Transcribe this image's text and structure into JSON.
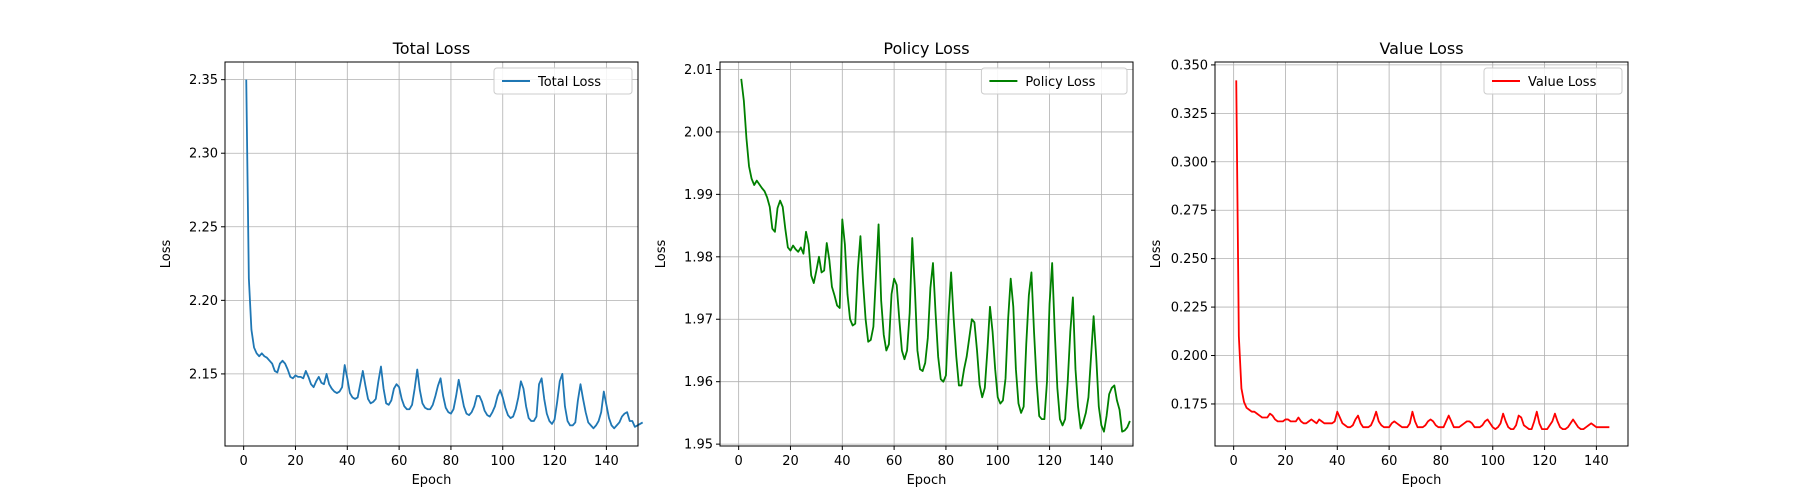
{
  "figure": {
    "background": "#ffffff"
  },
  "chart_data": [
    {
      "type": "line",
      "title": "Total Loss",
      "xlabel": "Epoch",
      "ylabel": "Loss",
      "xlim": [
        -7.2,
        152.2
      ],
      "ylim": [
        2.101,
        2.362
      ],
      "xticks": [
        0,
        20,
        40,
        60,
        80,
        100,
        120,
        140
      ],
      "yticks": [
        2.15,
        2.2,
        2.25,
        2.3,
        2.35
      ],
      "ytick_labels": [
        "2.15",
        "2.20",
        "2.25",
        "2.30",
        "2.35"
      ],
      "grid": true,
      "legend_position": "top-right",
      "series": [
        {
          "name": "Total Loss",
          "color": "#1f77b4",
          "x_start": 1,
          "values": [
            2.35,
            2.215,
            2.18,
            2.168,
            2.164,
            2.162,
            2.164,
            2.162,
            2.161,
            2.159,
            2.157,
            2.152,
            2.151,
            2.157,
            2.159,
            2.157,
            2.153,
            2.148,
            2.147,
            2.149,
            2.148,
            2.148,
            2.147,
            2.152,
            2.148,
            2.143,
            2.141,
            2.145,
            2.148,
            2.144,
            2.143,
            2.15,
            2.143,
            2.14,
            2.138,
            2.137,
            2.138,
            2.141,
            2.156,
            2.147,
            2.137,
            2.134,
            2.133,
            2.134,
            2.143,
            2.152,
            2.142,
            2.133,
            2.13,
            2.131,
            2.133,
            2.145,
            2.155,
            2.14,
            2.13,
            2.129,
            2.132,
            2.14,
            2.143,
            2.141,
            2.133,
            2.128,
            2.126,
            2.126,
            2.129,
            2.14,
            2.153,
            2.139,
            2.13,
            2.127,
            2.126,
            2.126,
            2.129,
            2.135,
            2.142,
            2.147,
            2.135,
            2.127,
            2.124,
            2.123,
            2.126,
            2.135,
            2.146,
            2.137,
            2.128,
            2.123,
            2.122,
            2.124,
            2.128,
            2.135,
            2.135,
            2.131,
            2.125,
            2.122,
            2.121,
            2.124,
            2.128,
            2.135,
            2.139,
            2.134,
            2.127,
            2.122,
            2.12,
            2.121,
            2.126,
            2.134,
            2.145,
            2.14,
            2.128,
            2.12,
            2.118,
            2.118,
            2.121,
            2.143,
            2.147,
            2.133,
            2.123,
            2.118,
            2.116,
            2.119,
            2.131,
            2.145,
            2.15,
            2.128,
            2.118,
            2.115,
            2.115,
            2.117,
            2.132,
            2.143,
            2.133,
            2.124,
            2.117,
            2.115,
            2.113,
            2.115,
            2.118,
            2.124,
            2.138,
            2.129,
            2.12,
            2.115,
            2.113,
            2.115,
            2.117,
            2.121,
            2.123,
            2.124,
            2.118,
            2.118,
            2.114,
            2.115,
            2.116,
            2.117
          ]
        }
      ]
    },
    {
      "type": "line",
      "title": "Policy Loss",
      "xlabel": "Epoch",
      "ylabel": "Loss",
      "xlim": [
        -7.2,
        152.2
      ],
      "ylim": [
        1.9497,
        2.0112
      ],
      "xticks": [
        0,
        20,
        40,
        60,
        80,
        100,
        120,
        140
      ],
      "yticks": [
        1.95,
        1.96,
        1.97,
        1.98,
        1.99,
        2.0,
        2.01
      ],
      "ytick_labels": [
        "1.95",
        "1.96",
        "1.97",
        "1.98",
        "1.99",
        "2.00",
        "2.01"
      ],
      "grid": true,
      "legend_position": "top-right",
      "series": [
        {
          "name": "Policy Loss",
          "color": "#008000",
          "x_start": 1,
          "values": [
            2.0085,
            2.005,
            1.999,
            1.9945,
            1.9925,
            1.9915,
            1.9922,
            1.9916,
            1.991,
            1.9905,
            1.9895,
            1.988,
            1.9845,
            1.984,
            1.9878,
            1.989,
            1.988,
            1.9845,
            1.9815,
            1.981,
            1.9818,
            1.9812,
            1.9808,
            1.9815,
            1.9805,
            1.984,
            1.982,
            1.977,
            1.9758,
            1.9778,
            1.98,
            1.9775,
            1.9778,
            1.9822,
            1.9795,
            1.9752,
            1.9738,
            1.9722,
            1.9718,
            1.986,
            1.982,
            1.974,
            1.97,
            1.969,
            1.9693,
            1.978,
            1.9833,
            1.976,
            1.97,
            1.9664,
            1.9667,
            1.9688,
            1.977,
            1.9852,
            1.973,
            1.9675,
            1.965,
            1.966,
            1.974,
            1.9765,
            1.9755,
            1.97,
            1.965,
            1.9636,
            1.965,
            1.971,
            1.983,
            1.975,
            1.965,
            1.962,
            1.9617,
            1.963,
            1.967,
            1.975,
            1.979,
            1.971,
            1.964,
            1.9604,
            1.96,
            1.961,
            1.9705,
            1.9775,
            1.97,
            1.964,
            1.9594,
            1.9594,
            1.962,
            1.964,
            1.967,
            1.97,
            1.9695,
            1.965,
            1.9595,
            1.9575,
            1.959,
            1.965,
            1.972,
            1.968,
            1.962,
            1.9575,
            1.9565,
            1.957,
            1.9605,
            1.97,
            1.9765,
            1.972,
            1.962,
            1.9565,
            1.955,
            1.956,
            1.966,
            1.9738,
            1.9775,
            1.968,
            1.96,
            1.9545,
            1.954,
            1.954,
            1.96,
            1.9725,
            1.979,
            1.968,
            1.959,
            1.954,
            1.953,
            1.954,
            1.96,
            1.968,
            1.9735,
            1.962,
            1.956,
            1.9525,
            1.9535,
            1.955,
            1.9575,
            1.964,
            1.9705,
            1.964,
            1.956,
            1.953,
            1.952,
            1.9545,
            1.958,
            1.959,
            1.9594,
            1.957,
            1.9555,
            1.952,
            1.9522,
            1.9527,
            1.9537
          ]
        }
      ]
    },
    {
      "type": "line",
      "title": "Value Loss",
      "xlabel": "Epoch",
      "ylabel": "Loss",
      "xlim": [
        -7.2,
        152.2
      ],
      "ylim": [
        0.1533,
        0.3515
      ],
      "xticks": [
        0,
        20,
        40,
        60,
        80,
        100,
        120,
        140
      ],
      "yticks": [
        0.175,
        0.2,
        0.225,
        0.25,
        0.275,
        0.3,
        0.325,
        0.35
      ],
      "ytick_labels": [
        "0.175",
        "0.200",
        "0.225",
        "0.250",
        "0.275",
        "0.300",
        "0.325",
        "0.350"
      ],
      "grid": true,
      "legend_position": "top-right",
      "series": [
        {
          "name": "Value Loss",
          "color": "#ff0000",
          "x_start": 1,
          "values": [
            0.342,
            0.21,
            0.183,
            0.176,
            0.173,
            0.172,
            0.171,
            0.171,
            0.17,
            0.169,
            0.168,
            0.168,
            0.168,
            0.17,
            0.169,
            0.167,
            0.166,
            0.166,
            0.166,
            0.167,
            0.167,
            0.166,
            0.166,
            0.166,
            0.168,
            0.166,
            0.165,
            0.165,
            0.166,
            0.167,
            0.166,
            0.165,
            0.167,
            0.166,
            0.165,
            0.165,
            0.165,
            0.165,
            0.166,
            0.171,
            0.168,
            0.165,
            0.164,
            0.163,
            0.163,
            0.164,
            0.167,
            0.169,
            0.165,
            0.163,
            0.163,
            0.163,
            0.164,
            0.167,
            0.171,
            0.166,
            0.164,
            0.163,
            0.163,
            0.163,
            0.165,
            0.166,
            0.165,
            0.164,
            0.163,
            0.163,
            0.163,
            0.165,
            0.171,
            0.166,
            0.163,
            0.163,
            0.163,
            0.164,
            0.166,
            0.167,
            0.166,
            0.164,
            0.163,
            0.163,
            0.163,
            0.166,
            0.169,
            0.166,
            0.163,
            0.163,
            0.163,
            0.164,
            0.165,
            0.166,
            0.166,
            0.165,
            0.163,
            0.163,
            0.163,
            0.164,
            0.166,
            0.167,
            0.165,
            0.163,
            0.162,
            0.163,
            0.165,
            0.17,
            0.166,
            0.163,
            0.162,
            0.162,
            0.164,
            0.169,
            0.168,
            0.164,
            0.163,
            0.162,
            0.162,
            0.166,
            0.171,
            0.165,
            0.162,
            0.162,
            0.162,
            0.164,
            0.166,
            0.17,
            0.166,
            0.163,
            0.162,
            0.162,
            0.163,
            0.165,
            0.167,
            0.165,
            0.163,
            0.162,
            0.162,
            0.163,
            0.164,
            0.165,
            0.164,
            0.163,
            0.163,
            0.163,
            0.163,
            0.163,
            0.163
          ]
        }
      ]
    }
  ]
}
